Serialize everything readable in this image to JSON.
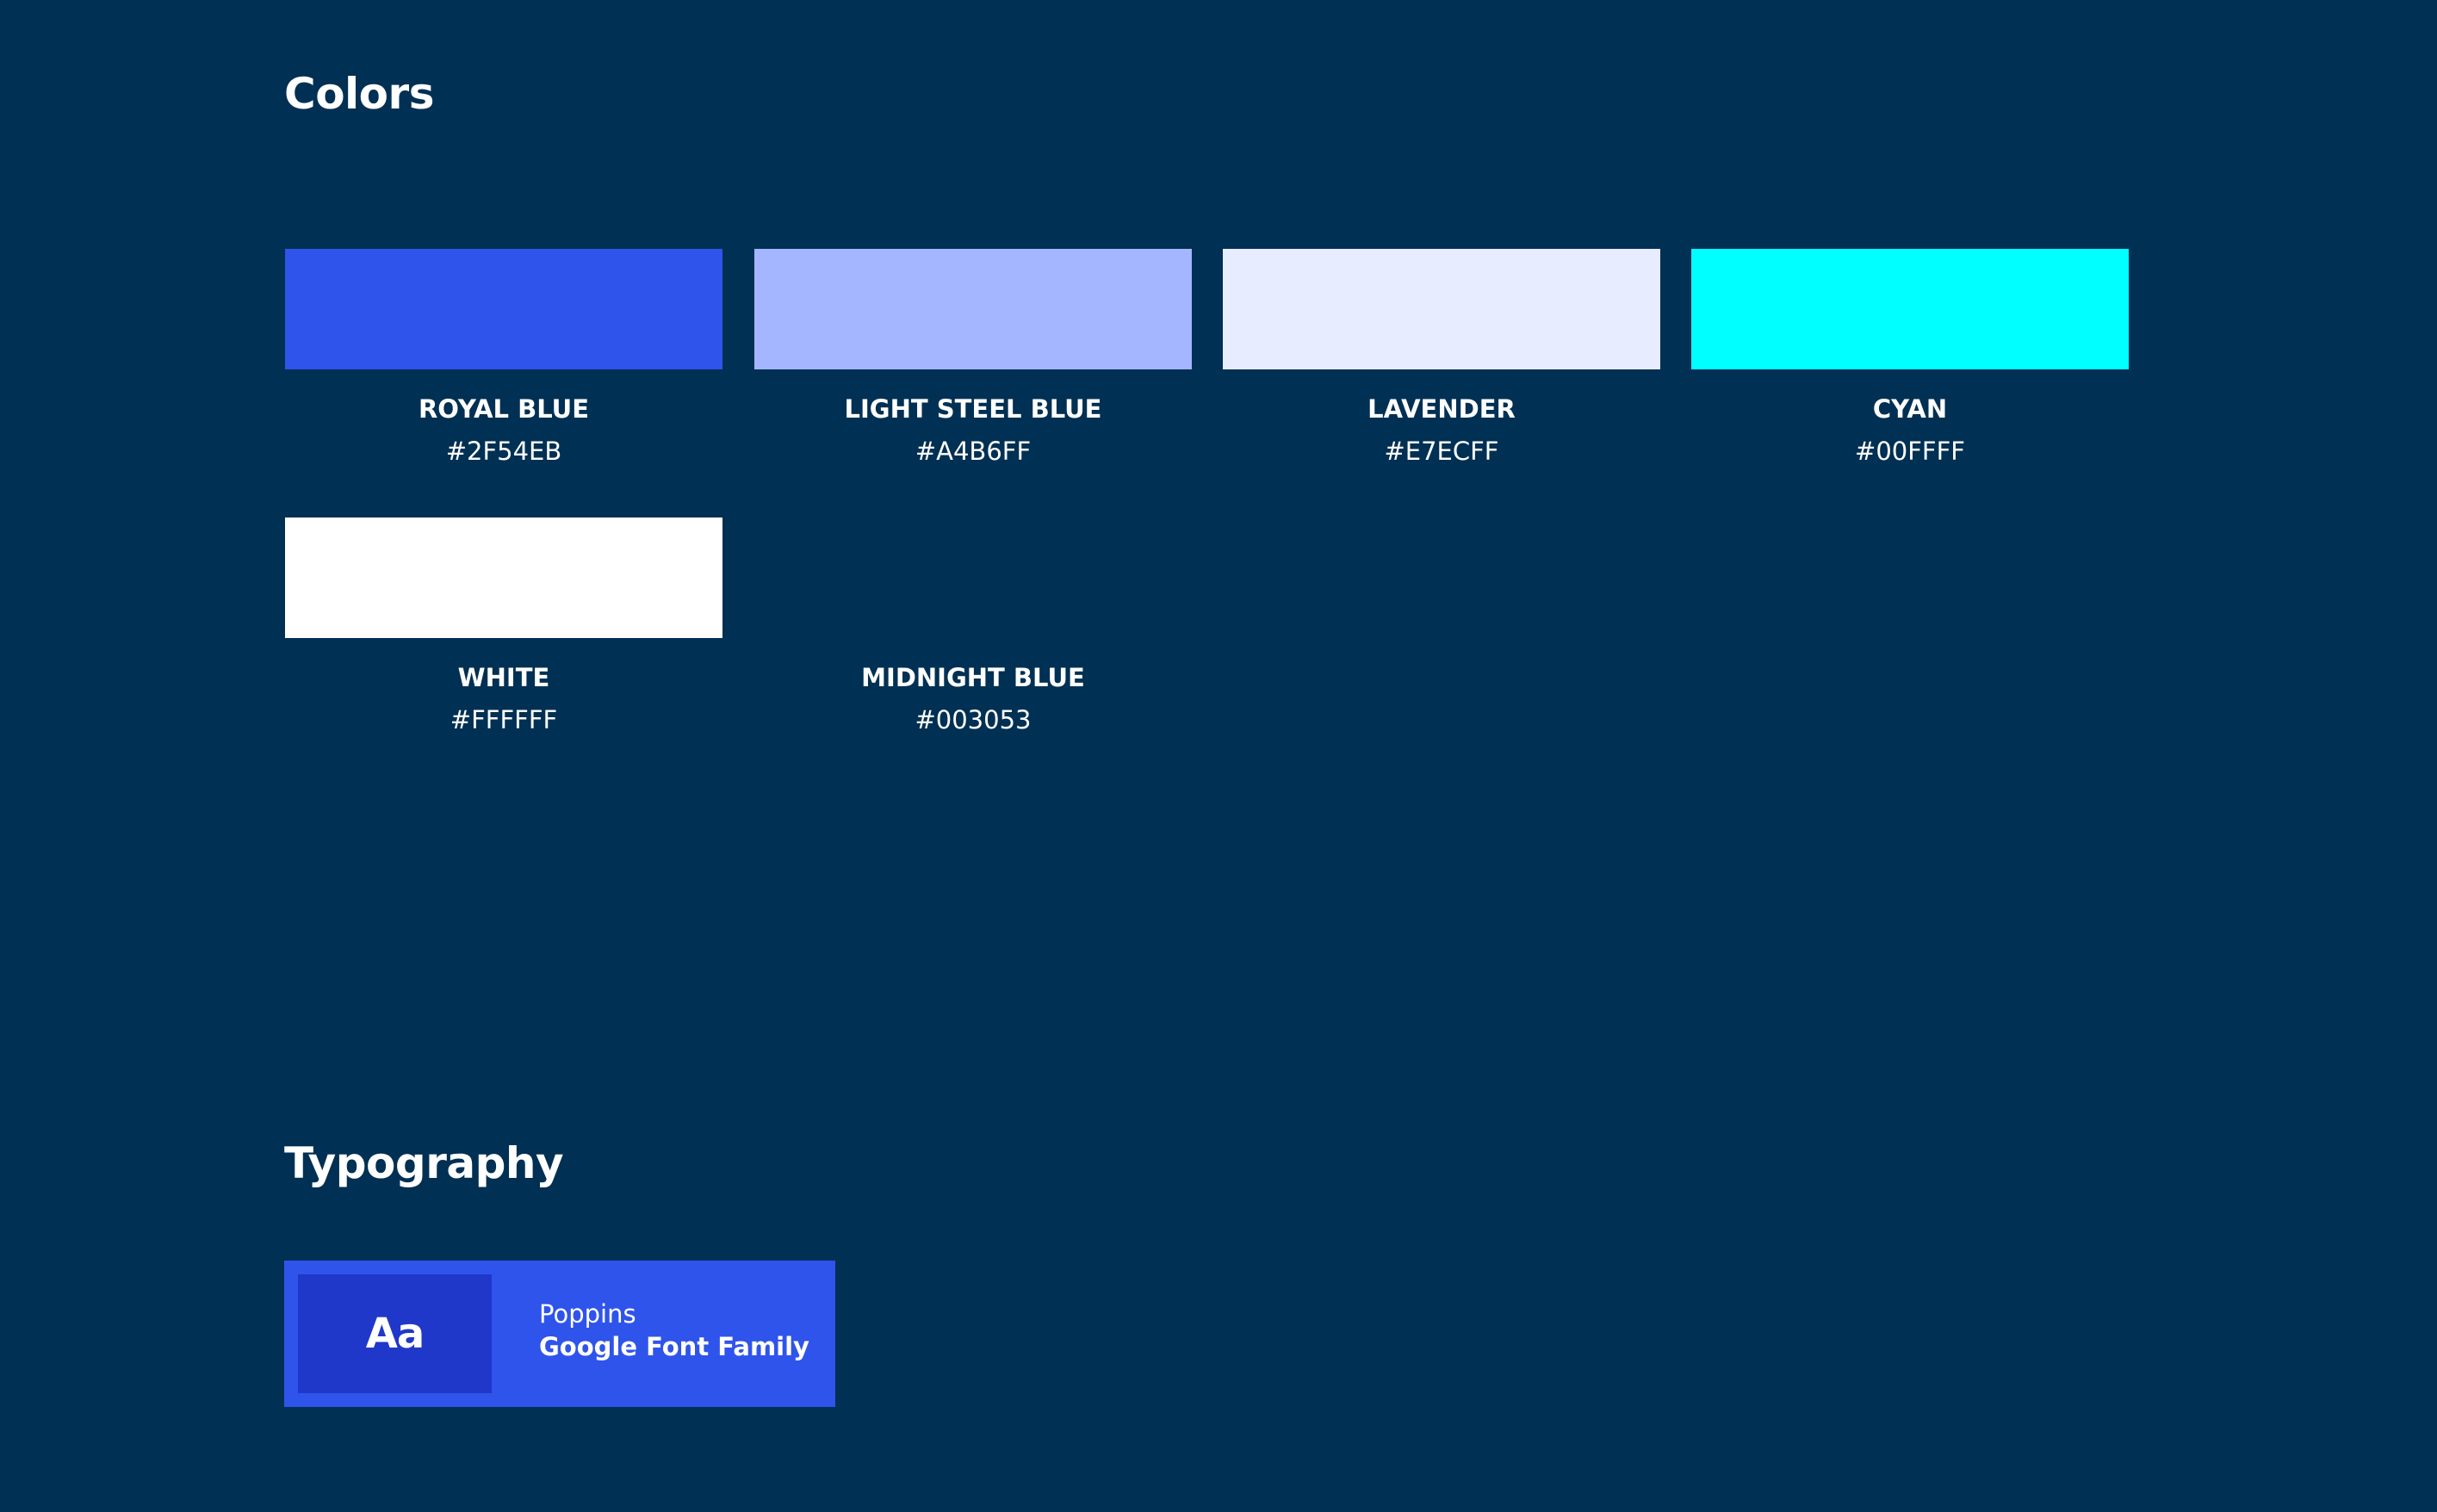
{
  "page": {
    "background": "#003053"
  },
  "colors_section": {
    "title": "Colors",
    "swatches": [
      {
        "name": "ROYAL BLUE",
        "hex": "#2F54EB",
        "color": "#2F54EB"
      },
      {
        "name": "LIGHT STEEL BLUE",
        "hex": "#A4B6FF",
        "color": "#A4B6FF"
      },
      {
        "name": "LAVENDER",
        "hex": "#E7ECFF",
        "color": "#E7ECFF"
      },
      {
        "name": "CYAN",
        "hex": "#00FFFF",
        "color": "#00FFFF"
      },
      {
        "name": "WHITE",
        "hex": "#FFFFFF",
        "color": "#FFFFFF"
      },
      {
        "name": "MIDNIGHT BLUE",
        "hex": "#003053",
        "color": "#003053"
      }
    ]
  },
  "typography_section": {
    "title": "Typography",
    "font_card": {
      "sample": "Aa",
      "font_name": "Poppins",
      "font_source": "Google Font Family",
      "card_color": "#2F54EB",
      "sample_color": "#2038C9"
    }
  }
}
